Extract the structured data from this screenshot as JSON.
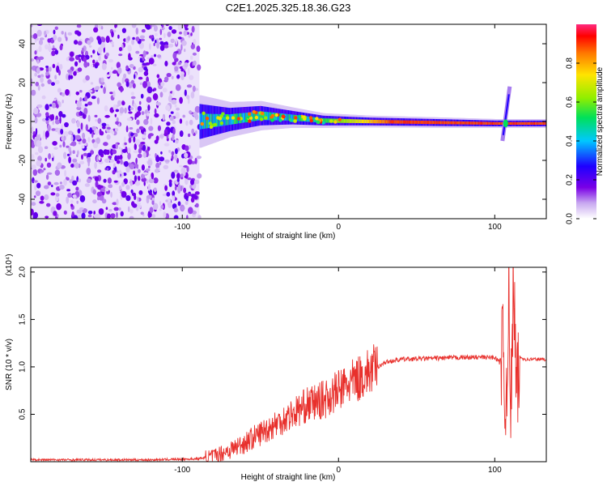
{
  "figure": {
    "title": "C2E1.2025.325.18.36.G23"
  },
  "chart_data": [
    {
      "type": "heatmap",
      "title": "C2E1.2025.325.18.36.G23",
      "xlabel": "Height of straight line (km)",
      "ylabel": "Frequency (Hz)",
      "xlim": [
        -197,
        133
      ],
      "ylim": [
        -50,
        50
      ],
      "xticks": [
        -100,
        0,
        100
      ],
      "xtick_labels": [
        "-100",
        "0",
        "100"
      ],
      "yticks": [
        -40,
        -20,
        0,
        20,
        40
      ],
      "ytick_labels": [
        "-40",
        "-20",
        "0",
        "20",
        "40"
      ],
      "colorbar": {
        "label": "Normalized spectral amplitude",
        "range": [
          0,
          1
        ],
        "ticks": [
          0.0,
          0.2,
          0.4,
          0.6,
          0.8
        ],
        "tick_labels": [
          "0.0",
          "0.2",
          "0.4",
          "0.6",
          "0.8"
        ],
        "colors": [
          "#ffffff",
          "#c8a8f0",
          "#7a00e6",
          "#1e00ff",
          "#00c8ff",
          "#00e05a",
          "#90ee00",
          "#ffe400",
          "#ff7a00",
          "#ff0000",
          "#ff2a80"
        ]
      },
      "noise_region_x": [
        -197,
        -89
      ],
      "ridge": [
        {
          "x": -89,
          "f": 0,
          "width": 9
        },
        {
          "x": -70,
          "f": 1,
          "width": 6
        },
        {
          "x": -50,
          "f": 3,
          "width": 5
        },
        {
          "x": -30,
          "f": 2,
          "width": 3.5
        },
        {
          "x": -10,
          "f": 0.5,
          "width": 2.5
        },
        {
          "x": 20,
          "f": 0,
          "width": 2
        },
        {
          "x": 60,
          "f": -0.5,
          "width": 1.8
        },
        {
          "x": 100,
          "f": -1,
          "width": 1.5
        },
        {
          "x": 133,
          "f": -1,
          "width": 1.5
        }
      ],
      "spike_x": 107
    },
    {
      "type": "line",
      "xlabel": "Height of straight line (km)",
      "ylabel": "SNR (10 * v/v)",
      "y_scale_label": "(x10⁴)",
      "xlim": [
        -197,
        133
      ],
      "ylim": [
        0,
        2.05
      ],
      "xticks": [
        -100,
        0,
        100
      ],
      "xtick_labels": [
        "-100",
        "0",
        "100"
      ],
      "yticks": [
        0.5,
        1.0,
        1.5,
        2.0
      ],
      "ytick_labels": [
        "0.5",
        "1.0",
        "1.5",
        "2.0"
      ],
      "color": "#e8302c",
      "series": [
        {
          "name": "SNR",
          "x": [
            -197,
            -120,
            -90,
            -80,
            -70,
            -60,
            -50,
            -40,
            -30,
            -20,
            -10,
            0,
            10,
            20,
            30,
            40,
            60,
            80,
            100,
            103,
            105,
            107,
            109,
            110,
            112,
            114,
            116,
            120,
            133
          ],
          "y": [
            0.02,
            0.02,
            0.03,
            0.06,
            0.12,
            0.2,
            0.3,
            0.4,
            0.5,
            0.6,
            0.65,
            0.75,
            0.85,
            0.95,
            1.05,
            1.08,
            1.09,
            1.1,
            1.1,
            1.05,
            1.2,
            0.5,
            1.8,
            0.3,
            2.0,
            0.6,
            1.1,
            1.08,
            1.08
          ]
        }
      ]
    }
  ]
}
